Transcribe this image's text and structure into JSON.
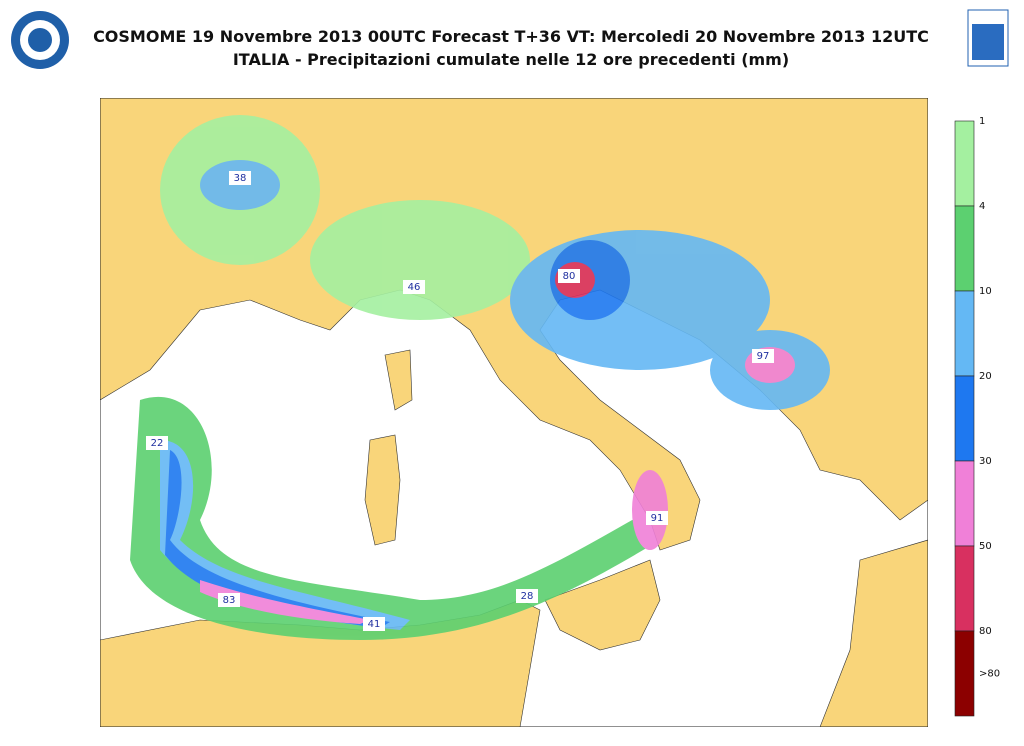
{
  "header": {
    "title": "COSMOME 19 Novembre 2013 00UTC Forecast T+36 VT: Mercoledi 20 Novembre 2013 12UTC",
    "subtitle": "ITALIA - Precipitazioni cumulate nelle 12 ore precedenti (mm)"
  },
  "legend": {
    "levels": [
      "1",
      "4",
      "10",
      "20",
      "30",
      "50",
      "80",
      ">80"
    ],
    "colors": [
      "#a4f0a0",
      "#5cd070",
      "#64b8f4",
      "#1e78f0",
      "#f080d8",
      "#d83060",
      "#8c0000"
    ]
  },
  "map": {
    "labels": [
      "38",
      "46",
      "80",
      "97",
      "22",
      "91",
      "83",
      "28",
      "41"
    ]
  }
}
